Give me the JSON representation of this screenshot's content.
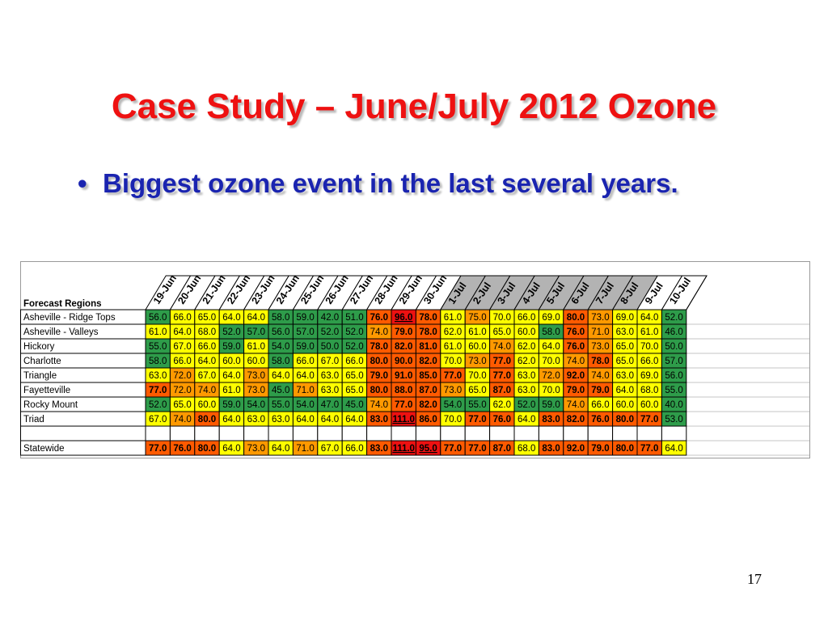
{
  "slide": {
    "title": "Case Study – June/July 2012 Ozone",
    "bullet": "Biggest ozone event in the last several years.",
    "page_number": "17"
  },
  "colors": {
    "green": "#2e9c4a",
    "yellow": "#ffff00",
    "orange": "#ff9900",
    "red_orange": "#ff5a00",
    "red": "#ee1111",
    "header_gray": "#b3b3b3",
    "grid": "#000000",
    "row_separator": "#c6c6c6"
  },
  "chart_data": {
    "type": "table",
    "header_label": "Forecast Regions",
    "columns": [
      "19-Jun",
      "20-Jun",
      "21-Jun",
      "22-Jun",
      "23-Jun",
      "24-Jun",
      "25-Jun",
      "26-Jun",
      "27-Jun",
      "28-Jun",
      "29-Jun",
      "30-Jun",
      "1-Jul",
      "2-Jul",
      "3-Jul",
      "4-Jul",
      "5-Jul",
      "6-Jul",
      "7-Jul",
      "8-Jul",
      "9-Jul",
      "10-Jul"
    ],
    "shaded_columns": [
      "1-Jul",
      "2-Jul",
      "3-Jul",
      "4-Jul",
      "5-Jul",
      "6-Jul",
      "7-Jul",
      "8-Jul"
    ],
    "rows": [
      {
        "name": "Asheville - Ridge Tops",
        "values": [
          "56.0",
          "66.0",
          "65.0",
          "64.0",
          "64.0",
          "58.0",
          "59.0",
          "42.0",
          "51.0",
          "76.0",
          "96.0",
          "78.0",
          "61.0",
          "75.0",
          "70.0",
          "66.0",
          "69.0",
          "80.0",
          "73.0",
          "69.0",
          "64.0",
          "52.0"
        ]
      },
      {
        "name": "Asheville - Valleys",
        "values": [
          "61.0",
          "64.0",
          "68.0",
          "52.0",
          "57.0",
          "56.0",
          "57.0",
          "52.0",
          "52.0",
          "74.0",
          "79.0",
          "78.0",
          "62.0",
          "61.0",
          "65.0",
          "60.0",
          "58.0",
          "76.0",
          "71.0",
          "63.0",
          "61.0",
          "46.0"
        ]
      },
      {
        "name": "Hickory",
        "values": [
          "55.0",
          "67.0",
          "66.0",
          "59.0",
          "61.0",
          "54.0",
          "59.0",
          "50.0",
          "52.0",
          "78.0",
          "82.0",
          "81.0",
          "61.0",
          "60.0",
          "74.0",
          "62.0",
          "64.0",
          "76.0",
          "73.0",
          "65.0",
          "70.0",
          "50.0"
        ]
      },
      {
        "name": "Charlotte",
        "values": [
          "58.0",
          "66.0",
          "64.0",
          "60.0",
          "60.0",
          "58.0",
          "66.0",
          "67.0",
          "66.0",
          "80.0",
          "90.0",
          "82.0",
          "70.0",
          "73.0",
          "77.0",
          "62.0",
          "70.0",
          "74.0",
          "78.0",
          "65.0",
          "66.0",
          "57.0"
        ]
      },
      {
        "name": "Triangle",
        "values": [
          "63.0",
          "72.0",
          "67.0",
          "64.0",
          "73.0",
          "64.0",
          "64.0",
          "63.0",
          "65.0",
          "79.0",
          "91.0",
          "85.0",
          "77.0",
          "70.0",
          "77.0",
          "63.0",
          "72.0",
          "92.0",
          "74.0",
          "63.0",
          "69.0",
          "56.0"
        ]
      },
      {
        "name": "Fayetteville",
        "values": [
          "77.0",
          "72.0",
          "74.0",
          "61.0",
          "73.0",
          "45.0",
          "71.0",
          "63.0",
          "65.0",
          "80.0",
          "88.0",
          "87.0",
          "73.0",
          "65.0",
          "87.0",
          "63.0",
          "70.0",
          "79.0",
          "79.0",
          "64.0",
          "68.0",
          "55.0"
        ]
      },
      {
        "name": "Rocky Mount",
        "values": [
          "52.0",
          "65.0",
          "60.0",
          "59.0",
          "54.0",
          "55.0",
          "54.0",
          "47.0",
          "45.0",
          "74.0",
          "77.0",
          "82.0",
          "54.0",
          "55.0",
          "62.0",
          "52.0",
          "59.0",
          "74.0",
          "66.0",
          "60.0",
          "60.0",
          "40.0"
        ]
      },
      {
        "name": "Triad",
        "values": [
          "67.0",
          "74.0",
          "80.0",
          "64.0",
          "63.0",
          "63.0",
          "64.0",
          "64.0",
          "64.0",
          "83.0",
          "111.0",
          "86.0",
          "70.0",
          "77.0",
          "76.0",
          "64.0",
          "83.0",
          "82.0",
          "76.0",
          "80.0",
          "77.0",
          "53.0"
        ]
      }
    ],
    "summary_row": {
      "name": "Statewide",
      "values": [
        "77.0",
        "76.0",
        "80.0",
        "64.0",
        "73.0",
        "64.0",
        "71.0",
        "67.0",
        "66.0",
        "83.0",
        "111.0",
        "95.0",
        "77.0",
        "77.0",
        "87.0",
        "68.0",
        "83.0",
        "92.0",
        "79.0",
        "80.0",
        "77.0",
        "64.0"
      ]
    }
  }
}
